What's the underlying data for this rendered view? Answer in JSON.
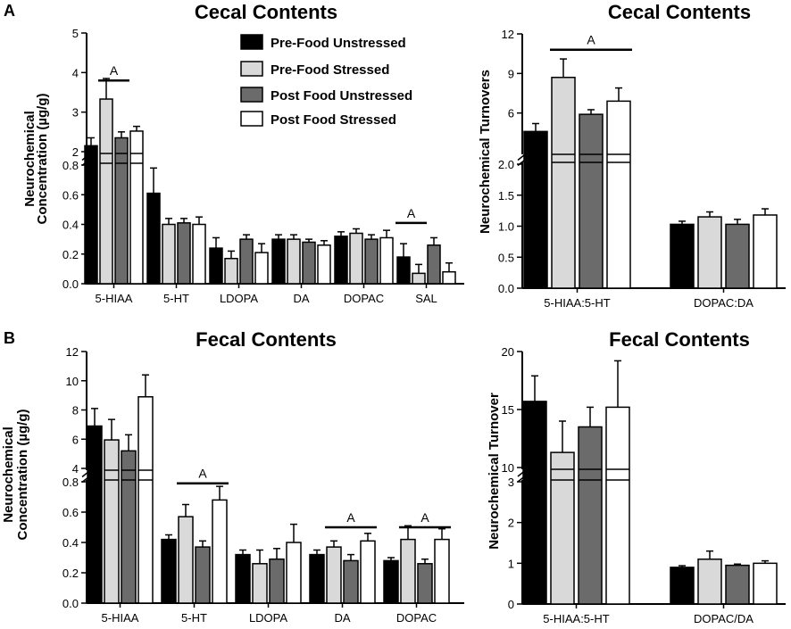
{
  "panel_labels": {
    "a": "A",
    "b": "B"
  },
  "legend": [
    {
      "label": "Pre-Food Unstressed",
      "color": "#000000"
    },
    {
      "label": "Pre-Food Stressed",
      "color": "#d9d9d9"
    },
    {
      "label": "Post Food Unstressed",
      "color": "#6b6b6b"
    },
    {
      "label": "Post Food Stressed",
      "color": "#ffffff"
    }
  ],
  "chart_data": [
    {
      "id": "cecal-conc",
      "type": "bar",
      "title": "Cecal Contents",
      "ylabel": [
        "Neurochemical",
        "Concentration (µg/g)"
      ],
      "categories": [
        "5-HIAA",
        "5-HT",
        "LDOPA",
        "DA",
        "DOPAC",
        "SAL"
      ],
      "lower_axis": {
        "range": [
          0,
          0.8
        ],
        "ticks": [
          "0.0",
          "0.2",
          "0.4",
          "0.6",
          "0.8"
        ]
      },
      "upper_axis": {
        "range": [
          2,
          5
        ],
        "ticks": [
          "2",
          "3",
          "4",
          "5"
        ]
      },
      "series": [
        {
          "name": "Pre-Food Unstressed",
          "values": [
            2.15,
            0.61,
            0.24,
            0.3,
            0.32,
            0.18
          ],
          "errors": [
            0.2,
            0.17,
            0.07,
            0.03,
            0.03,
            0.09
          ]
        },
        {
          "name": "Pre-Food Stressed",
          "values": [
            3.33,
            0.4,
            0.17,
            0.3,
            0.34,
            0.07
          ],
          "errors": [
            0.52,
            0.04,
            0.05,
            0.03,
            0.03,
            0.06
          ]
        },
        {
          "name": "Post Food Unstressed",
          "values": [
            2.35,
            0.41,
            0.3,
            0.28,
            0.3,
            0.26
          ],
          "errors": [
            0.15,
            0.03,
            0.03,
            0.02,
            0.03,
            0.05
          ]
        },
        {
          "name": "Post Food Stressed",
          "values": [
            2.52,
            0.4,
            0.21,
            0.26,
            0.31,
            0.08
          ],
          "errors": [
            0.12,
            0.05,
            0.06,
            0.03,
            0.05,
            0.06
          ]
        }
      ],
      "annotations": [
        {
          "text": "A",
          "category": "5-HIAA",
          "bars": [
            1,
            2
          ],
          "axis": "upper",
          "y": 3.8
        },
        {
          "text": "A",
          "category": "SAL",
          "bars": [
            0,
            1
          ],
          "axis": "lower",
          "y": 0.41
        }
      ]
    },
    {
      "id": "cecal-turnover",
      "type": "bar",
      "title": "Cecal Contents",
      "ylabel": [
        "Neurochemical  Turnovers"
      ],
      "categories": [
        "5-HIAA:5-HT",
        "DOPAC:DA"
      ],
      "lower_axis": {
        "range": [
          0,
          2.0
        ],
        "ticks": [
          "0.0",
          "0.5",
          "1.0",
          "1.5",
          "2.0"
        ]
      },
      "upper_axis": {
        "range": [
          3,
          12
        ],
        "ticks": [
          "6",
          "9",
          "12"
        ]
      },
      "series": [
        {
          "name": "Pre-Food Unstressed",
          "values": [
            4.6,
            1.03
          ],
          "errors": [
            0.6,
            0.05
          ]
        },
        {
          "name": "Pre-Food Stressed",
          "values": [
            8.7,
            1.15
          ],
          "errors": [
            1.4,
            0.08
          ]
        },
        {
          "name": "Post Food Unstressed",
          "values": [
            5.9,
            1.03
          ],
          "errors": [
            0.35,
            0.08
          ]
        },
        {
          "name": "Post Food Stressed",
          "values": [
            6.9,
            1.18
          ],
          "errors": [
            1.0,
            0.1
          ]
        }
      ],
      "annotations": [
        {
          "text": "A",
          "category": "5-HIAA:5-HT",
          "bars": [
            1,
            3
          ],
          "axis": "upper",
          "y": 10.8
        }
      ]
    },
    {
      "id": "fecal-conc",
      "type": "bar",
      "title": "Fecal Contents",
      "ylabel": [
        "Neurochemical",
        "Concentration (µg/g)"
      ],
      "categories": [
        "5-HIAA",
        "5-HT",
        "LDOPA",
        "DA",
        "DOPAC"
      ],
      "lower_axis": {
        "range": [
          0,
          0.8
        ],
        "ticks": [
          "0.0",
          "0.2",
          "0.4",
          "0.6",
          "0.8"
        ]
      },
      "upper_axis": {
        "range": [
          4,
          12
        ],
        "ticks": [
          "4",
          "6",
          "8",
          "10",
          "12"
        ]
      },
      "series": [
        {
          "name": "Pre-Food Unstressed",
          "values": [
            6.9,
            0.42,
            0.32,
            0.32,
            0.28
          ],
          "errors": [
            1.2,
            0.03,
            0.03,
            0.03,
            0.02
          ]
        },
        {
          "name": "Pre-Food Stressed",
          "values": [
            5.95,
            0.57,
            0.26,
            0.37,
            0.42
          ],
          "errors": [
            1.4,
            0.08,
            0.09,
            0.04,
            0.09
          ]
        },
        {
          "name": "Post Food Unstressed",
          "values": [
            5.2,
            0.37,
            0.29,
            0.28,
            0.26
          ],
          "errors": [
            1.1,
            0.04,
            0.07,
            0.04,
            0.03
          ]
        },
        {
          "name": "Post Food Stressed",
          "values": [
            8.9,
            0.68,
            0.4,
            0.41,
            0.42
          ],
          "errors": [
            1.5,
            0.09,
            0.12,
            0.05,
            0.07
          ]
        }
      ],
      "annotations": [
        {
          "text": "A",
          "category": "5-HT",
          "bars": [
            1,
            3
          ],
          "axis": "lower",
          "y": 0.79
        },
        {
          "text": "A",
          "category": "DA",
          "bars": [
            1,
            3
          ],
          "axis": "lower",
          "y": 0.5
        },
        {
          "text": "A",
          "category": "DOPAC",
          "bars": [
            1,
            3
          ],
          "axis": "lower",
          "y": 0.5
        }
      ]
    },
    {
      "id": "fecal-turnover",
      "type": "bar",
      "title": "Fecal Contents",
      "ylabel": [
        "Neurochemical Turnover"
      ],
      "categories": [
        "5-HIAA:5-HT",
        "DOPAC/DA"
      ],
      "lower_axis": {
        "range": [
          0,
          3
        ],
        "ticks": [
          "0",
          "1",
          "2",
          "3"
        ]
      },
      "upper_axis": {
        "range": [
          10,
          20
        ],
        "ticks": [
          "10",
          "15",
          "20"
        ]
      },
      "series": [
        {
          "name": "Pre-Food Unstressed",
          "values": [
            15.7,
            0.9
          ],
          "errors": [
            2.2,
            0.04
          ]
        },
        {
          "name": "Pre-Food Stressed",
          "values": [
            11.3,
            1.1
          ],
          "errors": [
            2.7,
            0.2
          ]
        },
        {
          "name": "Post Food Unstressed",
          "values": [
            13.5,
            0.95
          ],
          "errors": [
            1.7,
            0.03
          ]
        },
        {
          "name": "Post Food Stressed",
          "values": [
            15.2,
            1.0
          ],
          "errors": [
            4.0,
            0.06
          ]
        }
      ],
      "annotations": []
    }
  ]
}
